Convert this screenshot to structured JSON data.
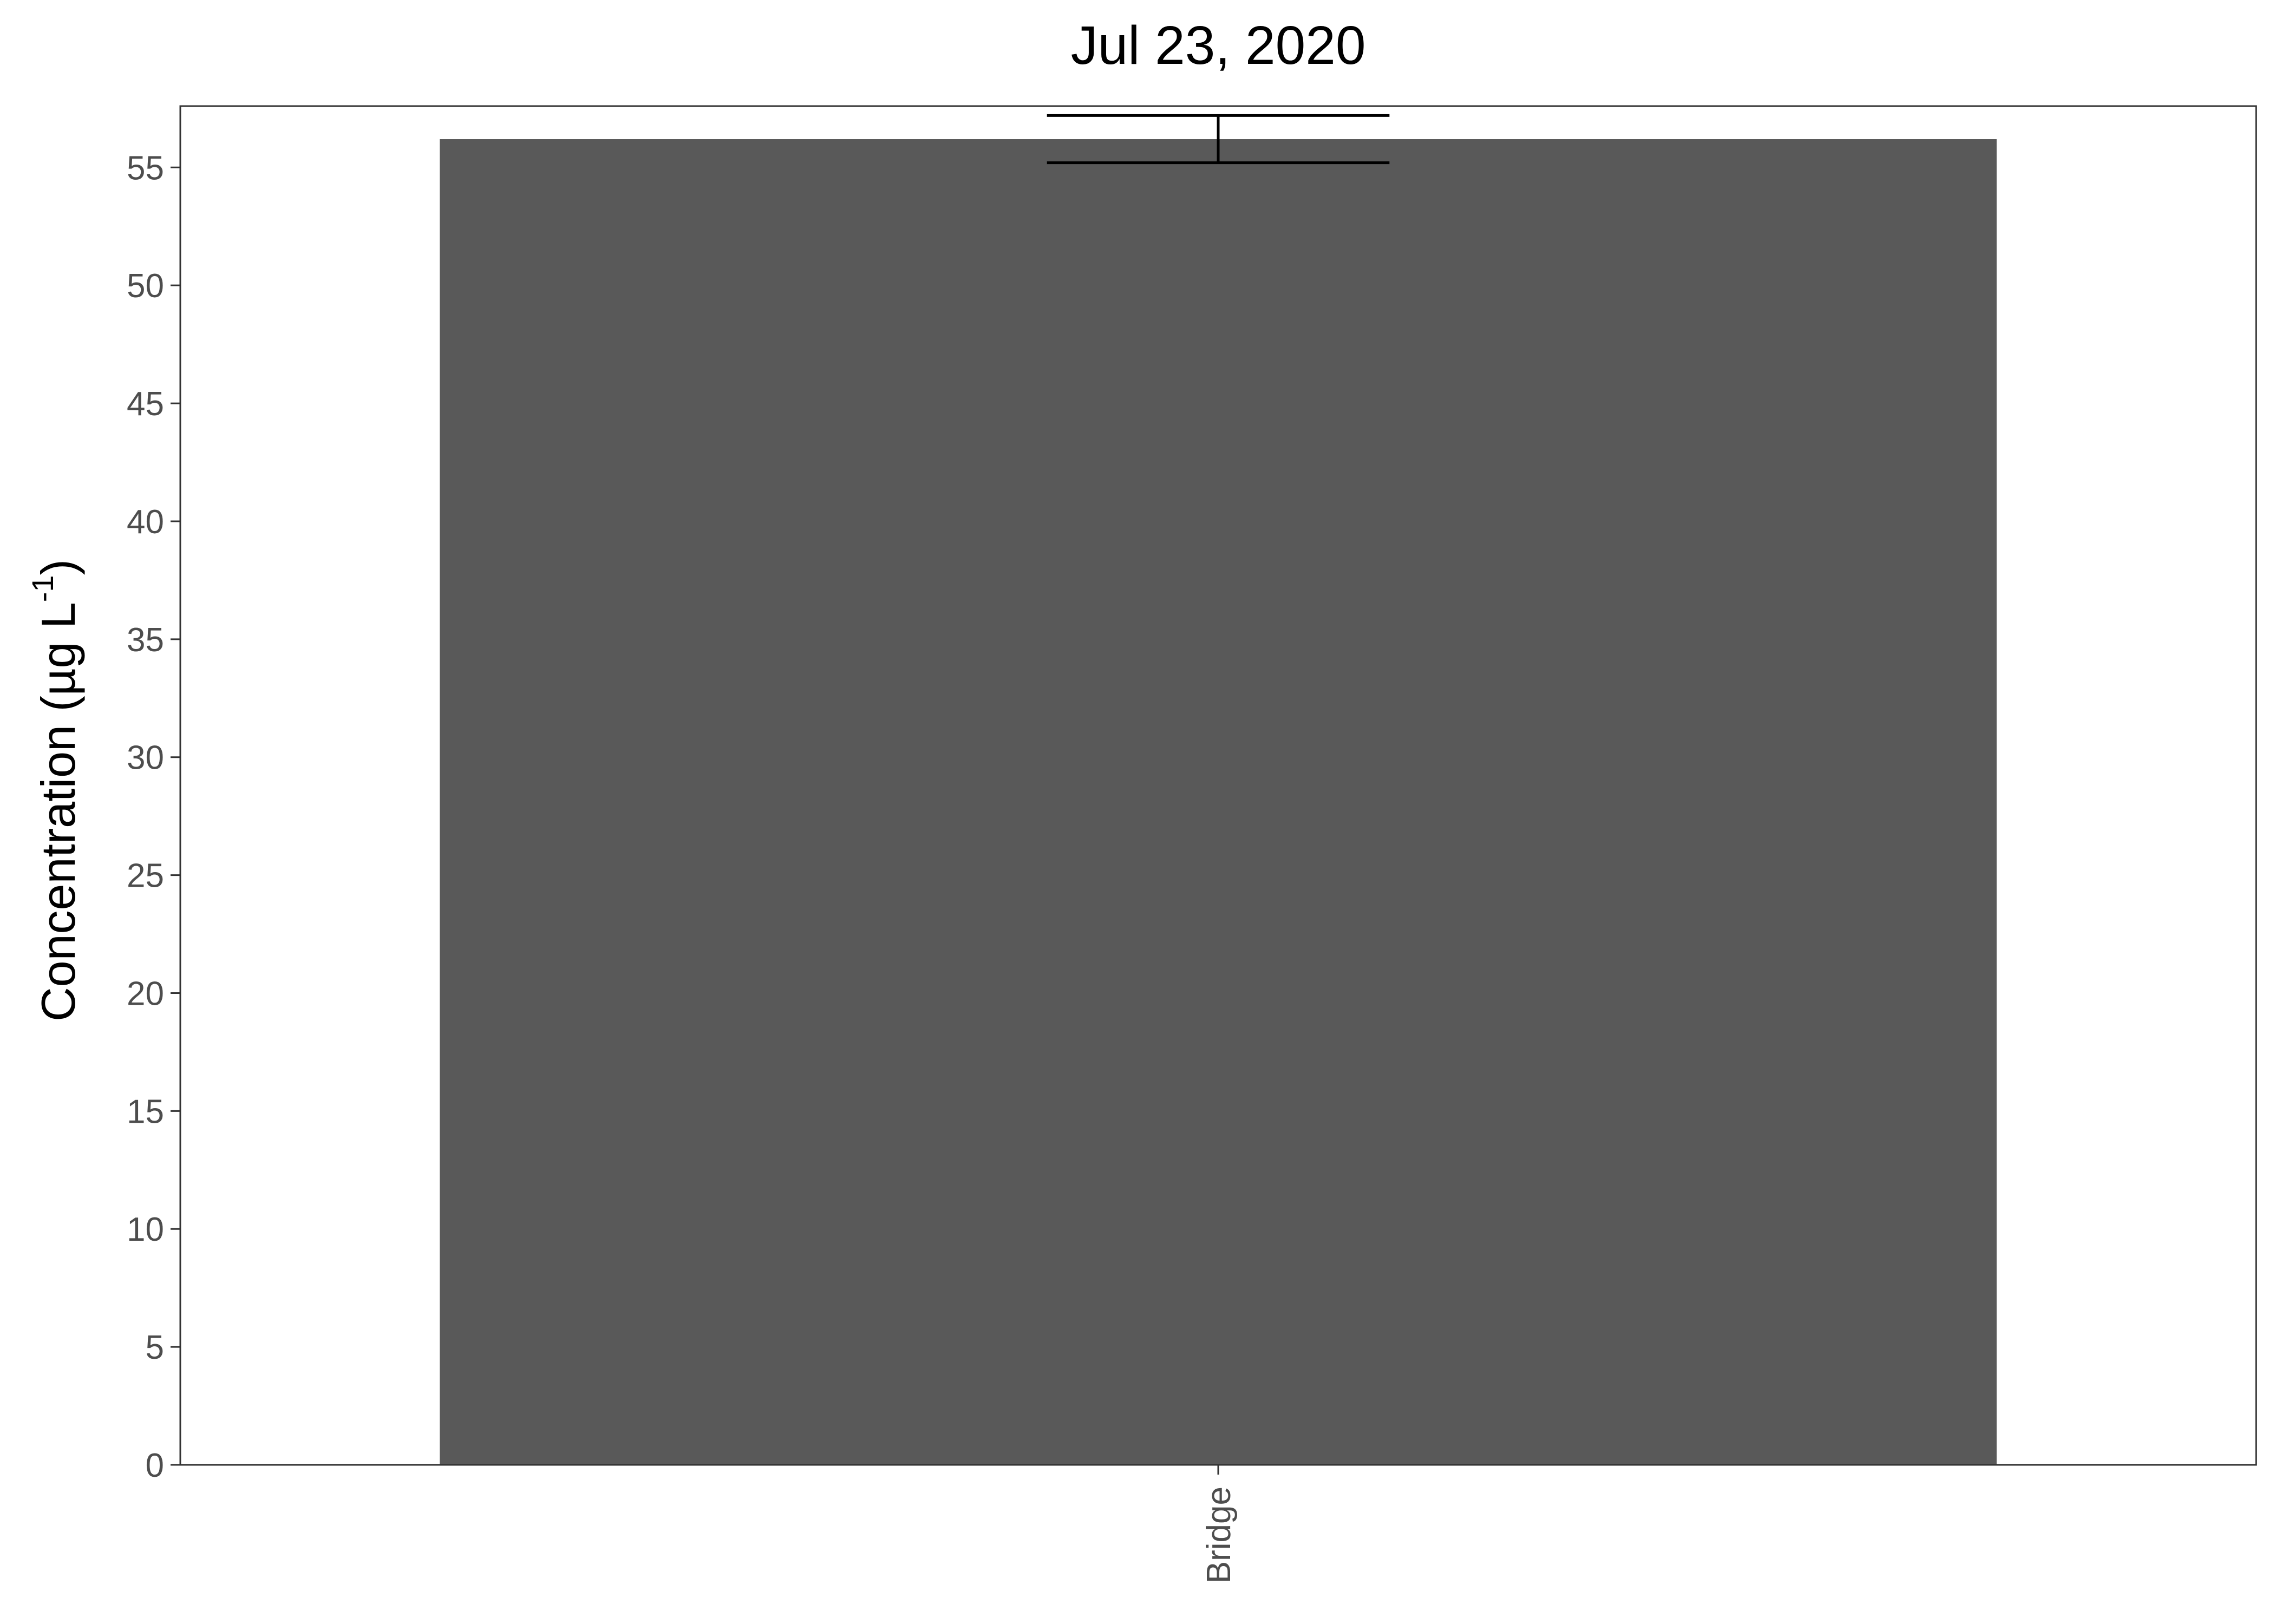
{
  "chart_data": {
    "type": "bar",
    "title": "Jul 23, 2020",
    "xlabel": "",
    "ylabel": {
      "prefix": "Concentration (µg L",
      "superscript": "-1",
      "suffix": ")"
    },
    "categories": [
      "Bridge"
    ],
    "series": [
      {
        "values": [
          56.2
        ],
        "error_low": [
          55.2
        ],
        "error_high": [
          57.2
        ],
        "color": "#595959"
      }
    ],
    "ylim": [
      0,
      57.6
    ],
    "yticks": [
      0,
      5,
      10,
      15,
      20,
      25,
      30,
      35,
      40,
      45,
      50,
      55
    ],
    "grid": false,
    "legend": "none"
  },
  "colors": {
    "bar": "#595959",
    "axis": "#333333",
    "tick_text": "#4d4d4d",
    "text": "#000000",
    "background": "#ffffff"
  }
}
